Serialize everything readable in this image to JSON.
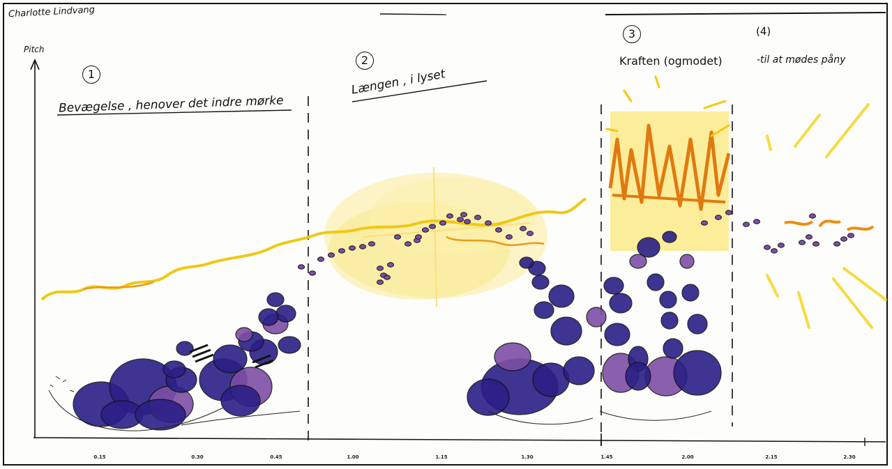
{
  "author": "Charlotte Lindvang",
  "y_axis_label": "Pitch",
  "sections": [
    {
      "number": "1",
      "title": "Bevægelse , henover det indre mørke"
    },
    {
      "number": "2",
      "title": "Længen , i lyset"
    },
    {
      "number": "3",
      "title": "Kraften (ogmodet)"
    },
    {
      "number": "(4)",
      "title": "-til at mødes påny"
    }
  ],
  "x_ticks": [
    "0.15",
    "0.30",
    "0.45",
    "1.00",
    "1.15",
    "1.30",
    "1.45",
    "2.00",
    "2.15",
    "2.30"
  ],
  "colors": {
    "yellow": "#f7d51f",
    "orange": "#e07a10",
    "navy": "#2a1f86",
    "purple": "#7d4fa6",
    "ink": "#111111"
  }
}
